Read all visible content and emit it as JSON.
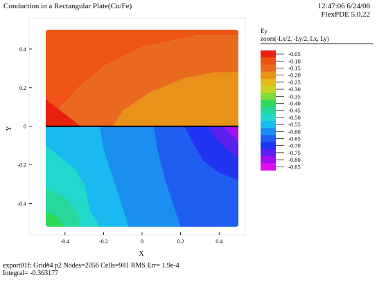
{
  "header": {
    "title": "Conduction in a Rectangular Plate(Cu/Fe)",
    "time": "12:47:06 6/24/08",
    "version": "FlexPDE 5.0.22"
  },
  "legend": {
    "variable": "Ey",
    "zoom": "zoom(-Lx/2, -Ly/2, Lx, Ly)",
    "levels": [
      {
        "label": "-0.05",
        "color": "#e82010"
      },
      {
        "label": "-0.10",
        "color": "#ee5416"
      },
      {
        "label": "-0.15",
        "color": "#e96a1e"
      },
      {
        "label": "-0.20",
        "color": "#e8921a"
      },
      {
        "label": "-0.25",
        "color": "#e3b91c"
      },
      {
        "label": "-0.30",
        "color": "#c8d420"
      },
      {
        "label": "-0.35",
        "color": "#80dc3c"
      },
      {
        "label": "-0.40",
        "color": "#30d85a"
      },
      {
        "label": "-0.45",
        "color": "#26d89a"
      },
      {
        "label": "-0.50",
        "color": "#22d8cc"
      },
      {
        "label": "-0.55",
        "color": "#1abaf0"
      },
      {
        "label": "-0.60",
        "color": "#1a8ff0"
      },
      {
        "label": "-0.65",
        "color": "#1f5ef0"
      },
      {
        "label": "-0.70",
        "color": "#2232f2"
      },
      {
        "label": "-0.75",
        "color": "#5a20f0"
      },
      {
        "label": "-0.80",
        "color": "#a010f0"
      },
      {
        "label": "-0.85",
        "color": "#e010ee"
      }
    ]
  },
  "chart_data": {
    "type": "heatmap",
    "title": "",
    "xlabel": "X",
    "ylabel": "Y",
    "xlim": [
      -0.5,
      0.5
    ],
    "ylim": [
      -0.5,
      0.5
    ],
    "x_ticks": [
      "-0.4",
      "-0.2",
      "0",
      "0.2",
      "0.4"
    ],
    "y_ticks": [
      "0.4",
      "0.2",
      "0",
      "-0.2",
      "-0.4"
    ],
    "x_tick_values": [
      -0.4,
      -0.2,
      0,
      0.2,
      0.4
    ],
    "y_tick_values": [
      0.4,
      0.2,
      0,
      -0.2,
      -0.4
    ],
    "interface_y": 0,
    "regions": [
      {
        "color": "#ee5416",
        "poly": [
          [
            -0.5,
            0.5
          ],
          [
            0.5,
            0.5
          ],
          [
            0.5,
            0.47
          ],
          [
            0.28,
            0.47
          ],
          [
            0.0,
            0.41
          ],
          [
            -0.2,
            0.31
          ],
          [
            -0.33,
            0.2
          ],
          [
            -0.42,
            0.1
          ],
          [
            -0.5,
            0.05
          ]
        ]
      },
      {
        "color": "#e8921a",
        "poly": [
          [
            -0.2,
            0.31
          ],
          [
            0.0,
            0.41
          ],
          [
            0.28,
            0.47
          ],
          [
            0.5,
            0.47
          ],
          [
            0.5,
            0.0
          ],
          [
            -0.15,
            0.0
          ],
          [
            -0.1,
            0.08
          ],
          [
            0.05,
            0.18
          ],
          [
            0.22,
            0.25
          ],
          [
            0.38,
            0.28
          ],
          [
            0.5,
            0.28
          ],
          [
            0.5,
            0.0
          ]
        ]
      },
      {
        "color": "#e96a1e",
        "poly": [
          [
            -0.5,
            0.05
          ],
          [
            -0.42,
            0.1
          ],
          [
            -0.33,
            0.2
          ],
          [
            -0.2,
            0.31
          ],
          [
            0.0,
            0.41
          ],
          [
            0.28,
            0.47
          ],
          [
            0.5,
            0.47
          ],
          [
            0.5,
            0.28
          ],
          [
            0.38,
            0.28
          ],
          [
            0.22,
            0.25
          ],
          [
            0.05,
            0.18
          ],
          [
            -0.1,
            0.08
          ],
          [
            -0.15,
            0.0
          ],
          [
            -0.5,
            0.0
          ]
        ]
      },
      {
        "color": "#e82010",
        "poly": [
          [
            -0.5,
            0.14
          ],
          [
            -0.45,
            0.1
          ],
          [
            -0.37,
            0.04
          ],
          [
            -0.32,
            0.0
          ],
          [
            -0.5,
            0.0
          ]
        ]
      },
      {
        "color": "#1abaf0",
        "poly": [
          [
            -0.5,
            0.0
          ],
          [
            0.5,
            0.0
          ],
          [
            0.5,
            -0.52
          ],
          [
            -0.5,
            -0.52
          ]
        ]
      },
      {
        "color": "#1a8ff0",
        "poly": [
          [
            -0.22,
            0.0
          ],
          [
            0.5,
            0.0
          ],
          [
            0.5,
            -0.52
          ],
          [
            -0.07,
            -0.52
          ],
          [
            -0.14,
            -0.3
          ],
          [
            -0.2,
            -0.12
          ]
        ]
      },
      {
        "color": "#1f5ef0",
        "poly": [
          [
            0.06,
            0.0
          ],
          [
            0.5,
            0.0
          ],
          [
            0.5,
            -0.52
          ],
          [
            0.2,
            -0.52
          ],
          [
            0.12,
            -0.28
          ],
          [
            0.08,
            -0.12
          ]
        ]
      },
      {
        "color": "#2232f2",
        "poly": [
          [
            0.22,
            0.0
          ],
          [
            0.5,
            0.0
          ],
          [
            0.5,
            -0.28
          ],
          [
            0.4,
            -0.24
          ],
          [
            0.32,
            -0.18
          ],
          [
            0.26,
            -0.08
          ]
        ]
      },
      {
        "color": "#5a20f0",
        "poly": [
          [
            0.34,
            0.0
          ],
          [
            0.5,
            0.0
          ],
          [
            0.5,
            -0.16
          ],
          [
            0.44,
            -0.12
          ],
          [
            0.38,
            -0.06
          ]
        ]
      },
      {
        "color": "#a010f0",
        "poly": [
          [
            0.42,
            0.0
          ],
          [
            0.5,
            0.0
          ],
          [
            0.5,
            -0.08
          ],
          [
            0.46,
            -0.04
          ]
        ]
      },
      {
        "color": "#22d8cc",
        "poly": [
          [
            -0.5,
            -0.1
          ],
          [
            -0.35,
            -0.22
          ],
          [
            -0.3,
            -0.3
          ],
          [
            -0.27,
            -0.44
          ],
          [
            -0.22,
            -0.52
          ],
          [
            -0.5,
            -0.52
          ]
        ]
      },
      {
        "color": "#26d89a",
        "poly": [
          [
            -0.5,
            -0.32
          ],
          [
            -0.4,
            -0.37
          ],
          [
            -0.34,
            -0.44
          ],
          [
            -0.32,
            -0.52
          ],
          [
            -0.5,
            -0.52
          ]
        ]
      },
      {
        "color": "#30d85a",
        "poly": [
          [
            -0.5,
            -0.44
          ],
          [
            -0.44,
            -0.47
          ],
          [
            -0.4,
            -0.52
          ],
          [
            -0.5,
            -0.52
          ]
        ]
      }
    ]
  },
  "footer": {
    "line1": "export01f:  Grid#4  p2  Nodes=2056 Cells=981 RMS Err= 1.9e-4",
    "line2": "Integral= -0.363177"
  }
}
